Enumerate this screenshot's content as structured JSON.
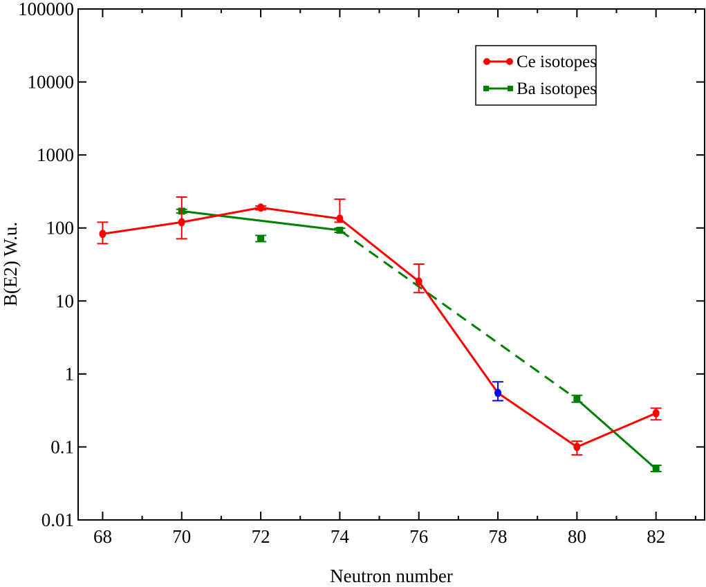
{
  "chart_data": {
    "type": "line",
    "title": "",
    "xlabel": "Neutron number",
    "ylabel": "B(E2) W.u.",
    "xlim": [
      67.38,
      83.23
    ],
    "ylim": [
      0.01,
      100000
    ],
    "yscale": "log",
    "grid": false,
    "legend_placement": "top-right",
    "x_ticks": [
      68,
      70,
      72,
      74,
      76,
      78,
      80,
      82
    ],
    "x_tick_labels": [
      "68",
      "70",
      "72",
      "74",
      "76",
      "78",
      "80",
      "82"
    ],
    "y_ticks": [
      0.01,
      0.1,
      1,
      10,
      100,
      1000,
      10000,
      100000
    ],
    "y_tick_labels": [
      "0.01",
      "0.1",
      "1",
      "10",
      "100",
      "1000",
      "10000",
      "100000"
    ],
    "series": [
      {
        "name": "Ce isotopes",
        "color": "#ff0000",
        "marker": "circle",
        "dash": false,
        "points": [
          {
            "x": 68,
            "y": 83,
            "err_low": 61,
            "err_high": 120,
            "color": "#ff0000"
          },
          {
            "x": 70,
            "y": 120,
            "err_low": 71,
            "err_high": 265,
            "color": "#ff0000"
          },
          {
            "x": 72,
            "y": 190,
            "err_low": 177,
            "err_high": 200,
            "color": "#ff0000"
          },
          {
            "x": 74,
            "y": 134,
            "err_low": 120,
            "err_high": 248,
            "color": "#ff0000"
          },
          {
            "x": 76,
            "y": 18.5,
            "err_low": 13,
            "err_high": 32,
            "color": "#ff0000"
          },
          {
            "x": 78,
            "y": 0.55,
            "err_low": 0.43,
            "err_high": 0.78,
            "color": "#0000ff"
          },
          {
            "x": 80,
            "y": 0.1,
            "err_low": 0.078,
            "err_high": 0.12,
            "color": "#ff0000"
          },
          {
            "x": 82,
            "y": 0.29,
            "err_low": 0.235,
            "err_high": 0.34,
            "color": "#ff0000"
          }
        ]
      },
      {
        "name": "Ba isotopes",
        "color": "#008000",
        "marker": "square",
        "points": [
          {
            "x": 70,
            "y": 170,
            "err_low": 160,
            "err_high": 180,
            "color": "#008000"
          },
          {
            "x": 72,
            "y": 71,
            "err_low": 65,
            "err_high": 79,
            "color": "#008000"
          },
          {
            "x": 74,
            "y": 93,
            "err_low": 87,
            "err_high": 99,
            "color": "#008000"
          },
          {
            "x": 80,
            "y": 0.45,
            "err_low": 0.41,
            "err_high": 0.51,
            "color": "#008000"
          },
          {
            "x": 82,
            "y": 0.05,
            "err_low": 0.046,
            "err_high": 0.056,
            "color": "#008000"
          }
        ],
        "segments": [
          {
            "from": 70,
            "to": 74,
            "dash": false
          },
          {
            "from": 74,
            "to": 80,
            "dash": true
          },
          {
            "from": 80,
            "to": 82,
            "dash": false
          }
        ]
      }
    ]
  }
}
